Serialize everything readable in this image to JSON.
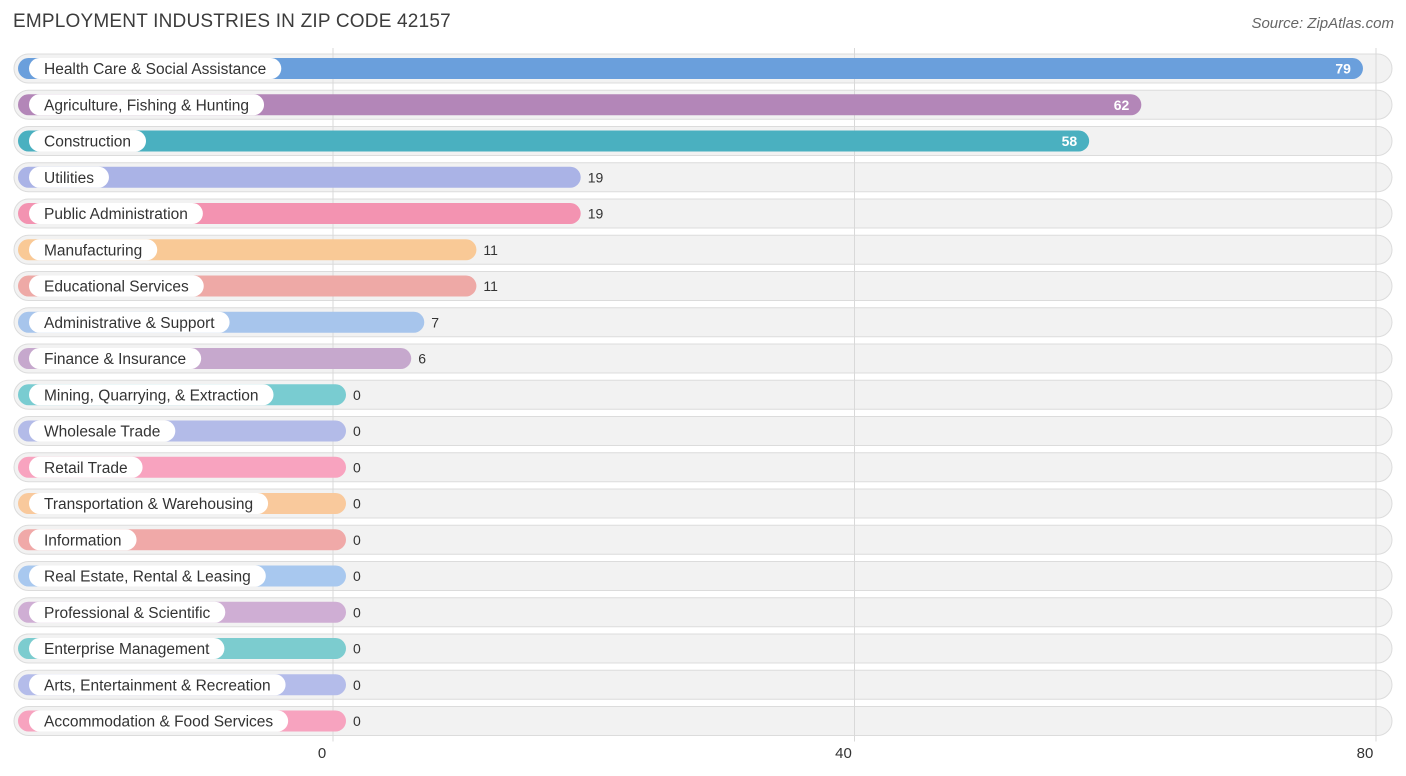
{
  "header": {
    "title": "EMPLOYMENT INDUSTRIES IN ZIP CODE 42157",
    "source": "Source: ZipAtlas.com"
  },
  "chart_data": {
    "type": "bar",
    "orientation": "horizontal",
    "title": "EMPLOYMENT INDUSTRIES IN ZIP CODE 42157",
    "xlim": [
      0,
      80
    ],
    "x_ticks": [
      "0",
      "40",
      "80"
    ],
    "grid": true,
    "categories": [
      "Health Care & Social Assistance",
      "Agriculture, Fishing & Hunting",
      "Construction",
      "Utilities",
      "Public Administration",
      "Manufacturing",
      "Educational Services",
      "Administrative & Support",
      "Finance & Insurance",
      "Mining, Quarrying, & Extraction",
      "Wholesale Trade",
      "Retail Trade",
      "Transportation & Warehousing",
      "Information",
      "Real Estate, Rental & Leasing",
      "Professional & Scientific",
      "Enterprise Management",
      "Arts, Entertainment & Recreation",
      "Accommodation & Food Services"
    ],
    "values": [
      79,
      62,
      58,
      19,
      19,
      11,
      11,
      7,
      6,
      0,
      0,
      0,
      0,
      0,
      0,
      0,
      0,
      0,
      0
    ],
    "colors": [
      "#6a9fdc",
      "#b386b8",
      "#4ab0c0",
      "#aab3e6",
      "#f393b1",
      "#f9c996",
      "#eea9a6",
      "#a7c5ec",
      "#c6a8cd",
      "#79ccd1",
      "#b3bbe8",
      "#f8a3bf",
      "#f9c99c",
      "#f0a9a8",
      "#a8c8ef",
      "#cfaed4",
      "#7ccccf",
      "#b4bcea",
      "#f7a3bf"
    ]
  }
}
